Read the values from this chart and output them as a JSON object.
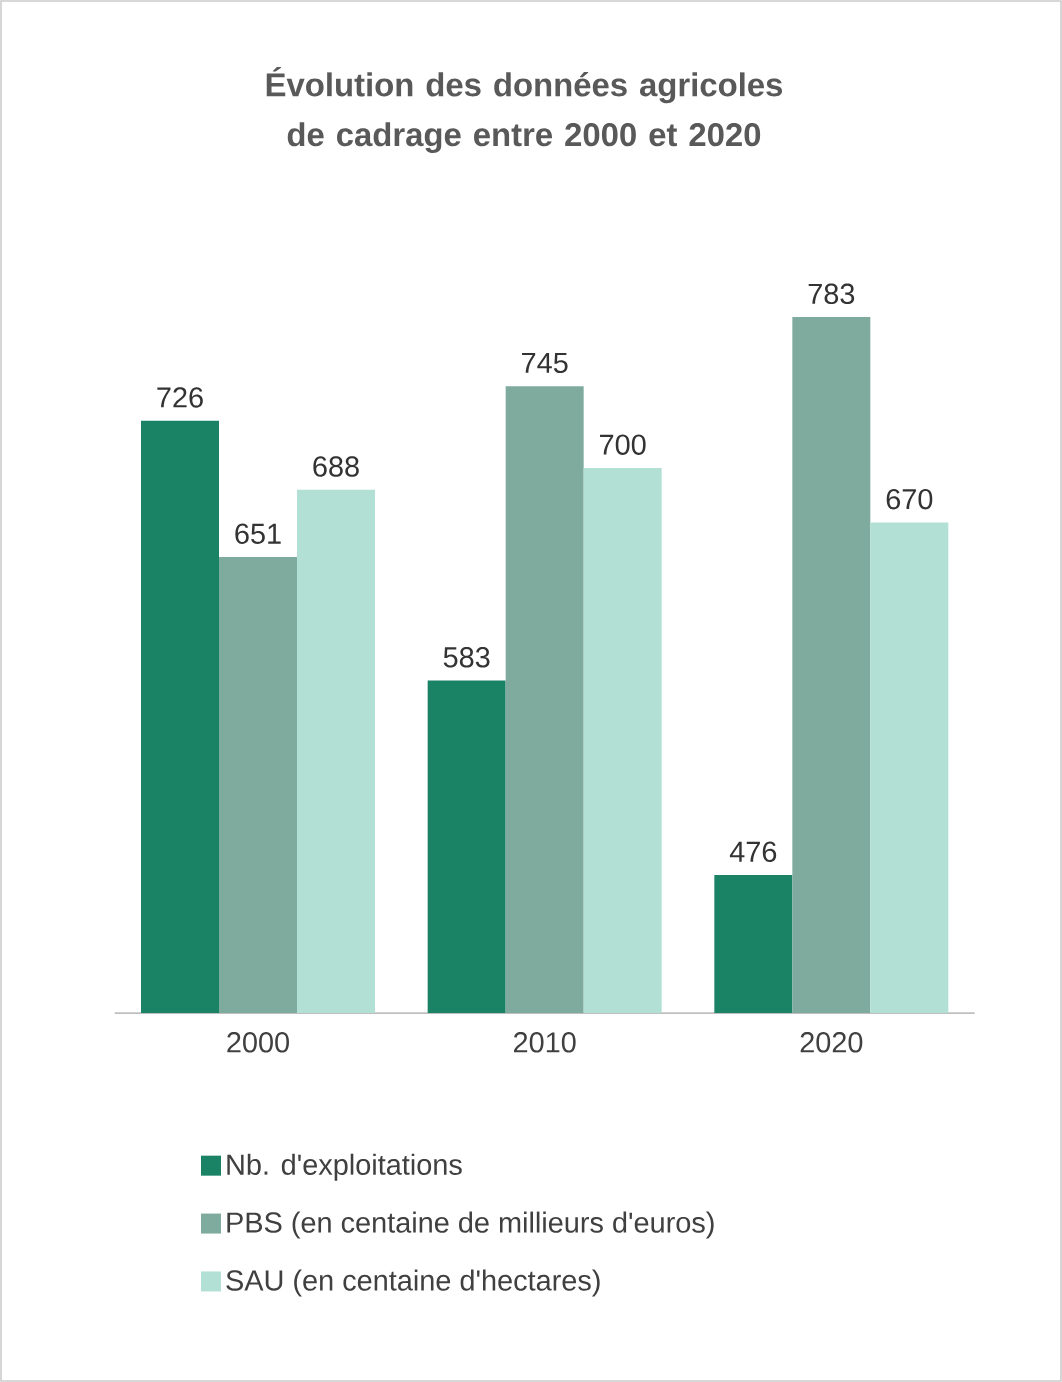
{
  "chart_data": {
    "type": "bar",
    "title": "Évolution des données agricoles de cadrage entre 2000 et 2020",
    "categories": [
      "2000",
      "2010",
      "2020"
    ],
    "series": [
      {
        "name": "Nb. d'exploitations",
        "color": "#1a8366",
        "values": [
          726,
          583,
          476
        ]
      },
      {
        "name": "PBS (en centaine de millieurs d'euros)",
        "color": "#7fab9f",
        "values": [
          651,
          745,
          783
        ]
      },
      {
        "name": "SAU (en centaine d'hectares)",
        "color": "#b3e0d5",
        "values": [
          688,
          700,
          670
        ]
      }
    ],
    "ylim": [
      400,
      783
    ],
    "data_labels": true,
    "legend": "bottom",
    "tick_labels": "x"
  }
}
